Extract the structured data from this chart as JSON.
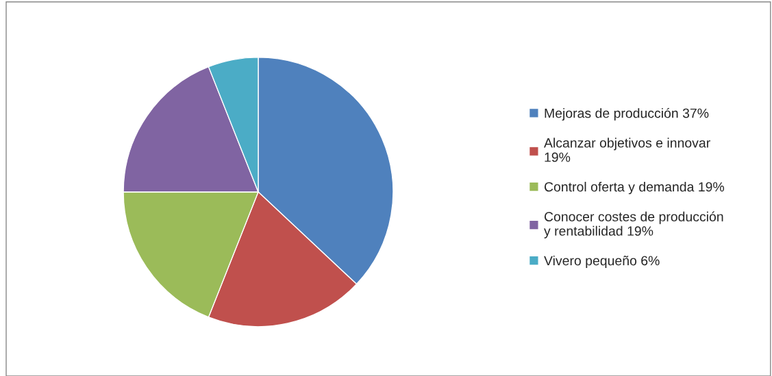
{
  "chart_data": {
    "type": "pie",
    "categories": [
      "Mejoras de producción 37%",
      "Alcanzar objetivos e innovar\n19%",
      "Control oferta y demanda 19%",
      "Conocer costes de producción\ny rentabilidad 19%",
      "Vivero pequeño 6%"
    ],
    "values": [
      37,
      19,
      19,
      19,
      6
    ],
    "colors": [
      "#4f81bd",
      "#c0504d",
      "#9bbb59",
      "#8064a2",
      "#4bacc6"
    ],
    "legend": "right"
  }
}
